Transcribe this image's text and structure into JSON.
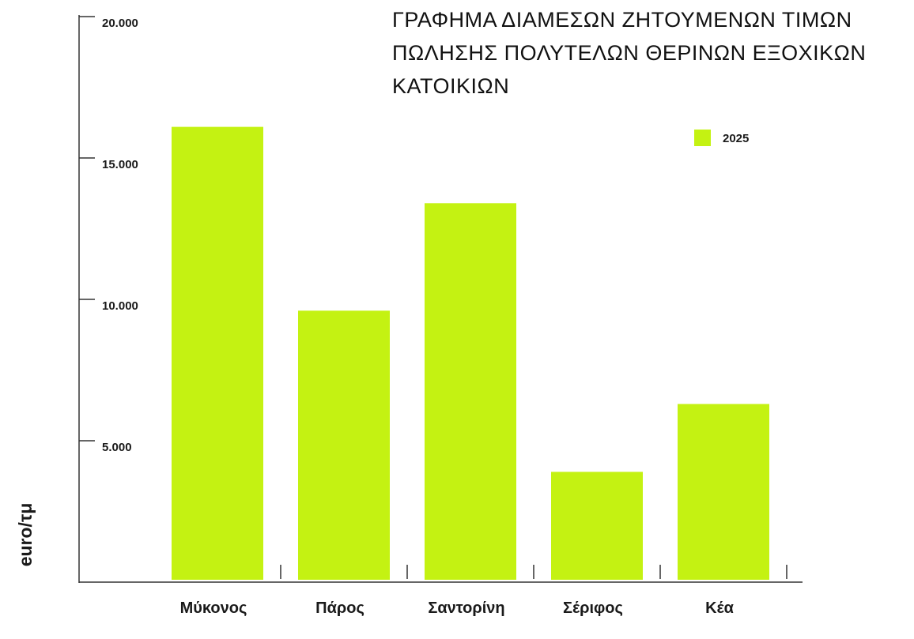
{
  "chart_data": {
    "type": "bar",
    "title_lines": [
      "ΓΡΑΦΗΜΑ ΔΙΑΜΕΣΩΝ ΖΗΤΟΥΜΕΝΩΝ ΤΙΜΩΝ",
      "ΠΩΛΗΣΗΣ ΠΟΛΥΤΕΛΩΝ ΘΕΡΙΝΩΝ ΕΞΟΧΙΚΩΝ",
      "ΚΑΤΟΙΚΙΩΝ"
    ],
    "ylabel": "euro/τμ",
    "xlabel": "",
    "categories": [
      "Μύκονος",
      "Πάρος",
      "Σαντορίνη",
      "Σέριφος",
      "Κέα"
    ],
    "series": [
      {
        "name": "2025",
        "values": [
          16100,
          9600,
          13400,
          3900,
          6300
        ],
        "color": "#c4f212"
      }
    ],
    "ylim": [
      0,
      20000
    ],
    "yticks": [
      5000,
      10000,
      15000,
      20000
    ],
    "ytick_labels": [
      "5.000",
      "10.000",
      "15.000",
      "20.000"
    ],
    "grid": false,
    "legend_position": "top-right"
  }
}
